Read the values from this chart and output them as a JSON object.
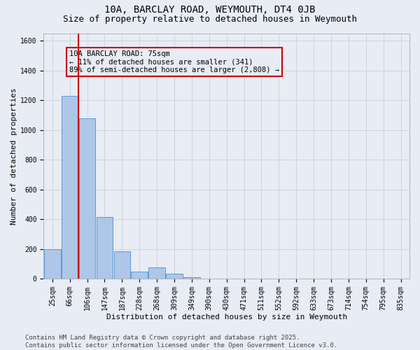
{
  "title_line1": "10A, BARCLAY ROAD, WEYMOUTH, DT4 0JB",
  "title_line2": "Size of property relative to detached houses in Weymouth",
  "xlabel": "Distribution of detached houses by size in Weymouth",
  "ylabel": "Number of detached properties",
  "categories": [
    "25sqm",
    "66sqm",
    "106sqm",
    "147sqm",
    "187sqm",
    "228sqm",
    "268sqm",
    "309sqm",
    "349sqm",
    "390sqm",
    "430sqm",
    "471sqm",
    "511sqm",
    "552sqm",
    "592sqm",
    "633sqm",
    "673sqm",
    "714sqm",
    "754sqm",
    "795sqm",
    "835sqm"
  ],
  "values": [
    200,
    1230,
    1080,
    415,
    185,
    50,
    75,
    35,
    10,
    0,
    0,
    0,
    0,
    0,
    0,
    0,
    0,
    0,
    0,
    0,
    0
  ],
  "bar_color": "#aec6e8",
  "bar_edge_color": "#5b9bd5",
  "grid_color": "#c8d0de",
  "background_color": "#e8ecf4",
  "vline_color": "#cc0000",
  "vline_x_index": 1.5,
  "annotation_text": "10A BARCLAY ROAD: 75sqm\n← 11% of detached houses are smaller (341)\n89% of semi-detached houses are larger (2,808) →",
  "annotation_box_edgecolor": "#cc0000",
  "ylim": [
    0,
    1650
  ],
  "yticks": [
    0,
    200,
    400,
    600,
    800,
    1000,
    1200,
    1400,
    1600
  ],
  "footer_line1": "Contains HM Land Registry data © Crown copyright and database right 2025.",
  "footer_line2": "Contains public sector information licensed under the Open Government Licence v3.0.",
  "title_fontsize": 10,
  "subtitle_fontsize": 9,
  "axis_label_fontsize": 8,
  "tick_fontsize": 7,
  "annotation_fontsize": 7.5,
  "footer_fontsize": 6.5
}
